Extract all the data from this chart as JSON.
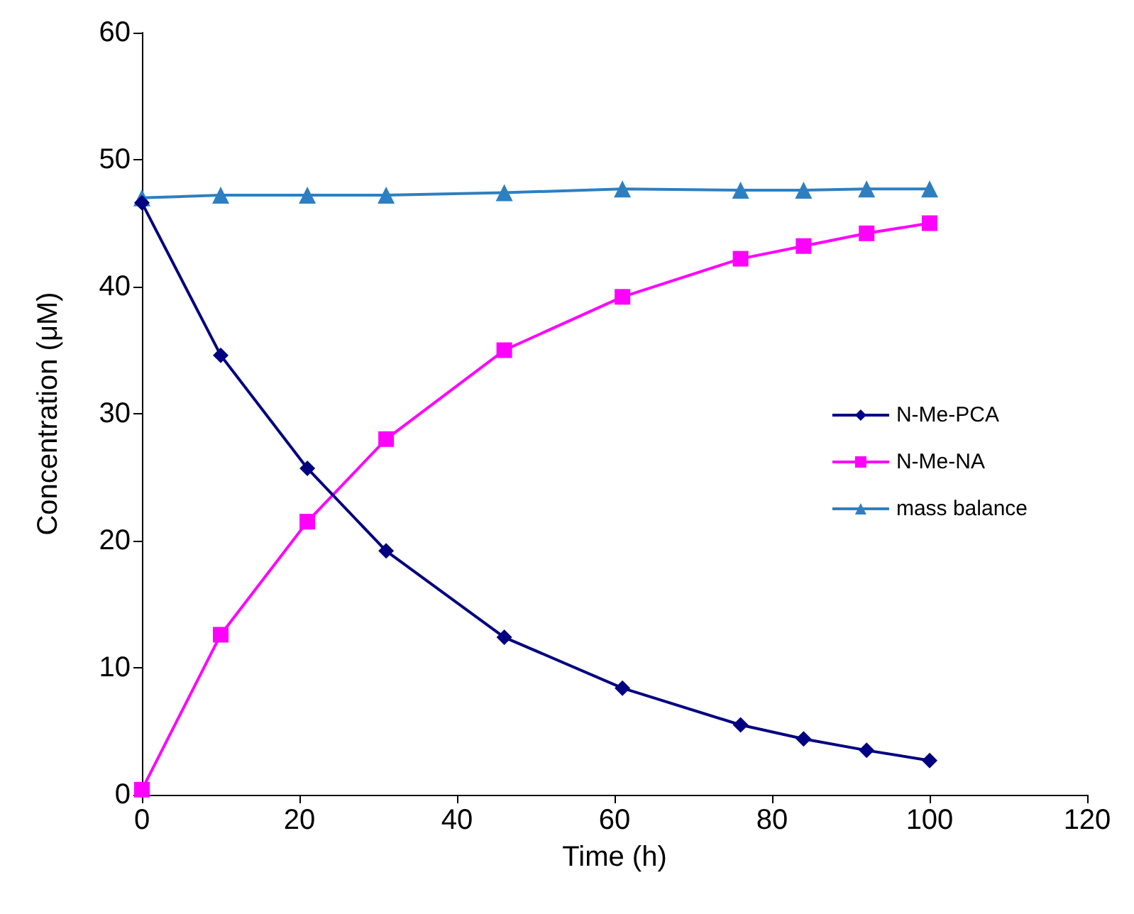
{
  "chart_data": {
    "type": "line",
    "xlabel": "Time (h)",
    "ylabel": "Concentration (μM)",
    "x": [
      0,
      10,
      21,
      31,
      46,
      61,
      76,
      84,
      92,
      100
    ],
    "series": [
      {
        "name": "N-Me-PCA",
        "color": "#000080",
        "marker": "diamond",
        "values": [
          46.6,
          34.6,
          25.7,
          19.2,
          12.4,
          8.4,
          5.5,
          4.4,
          3.5,
          2.7
        ]
      },
      {
        "name": "N-Me-NA",
        "color": "#ff00ff",
        "marker": "square",
        "values": [
          0.4,
          12.6,
          21.5,
          28,
          35,
          39.2,
          42.2,
          43.2,
          44.2,
          45
        ]
      },
      {
        "name": "mass balance",
        "color": "#2e7fc0",
        "marker": "triangle",
        "values": [
          47,
          47.2,
          47.2,
          47.2,
          47.4,
          47.7,
          47.6,
          47.6,
          47.7,
          47.7
        ]
      }
    ],
    "xlim": [
      0,
      120
    ],
    "xticks": [
      0,
      20,
      40,
      60,
      80,
      100,
      120
    ],
    "ylim": [
      0,
      60
    ],
    "yticks": [
      0,
      10,
      20,
      30,
      40,
      50,
      60
    ],
    "grid": false,
    "legend": "right",
    "line_style": "solid"
  }
}
